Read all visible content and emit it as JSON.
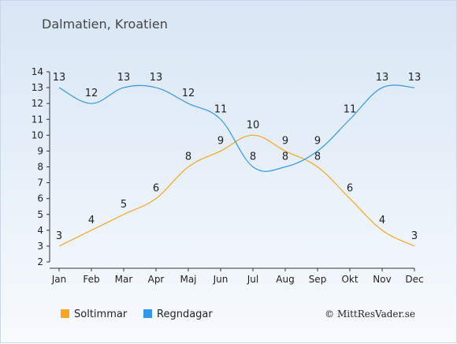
{
  "header": {
    "title": "Dalmatien, Kroatien"
  },
  "footer": {
    "copyright": "© MittResVader.se"
  },
  "chart_data": {
    "type": "line",
    "categories": [
      "Jan",
      "Feb",
      "Mar",
      "Apr",
      "Maj",
      "Jun",
      "Jul",
      "Aug",
      "Sep",
      "Okt",
      "Nov",
      "Dec"
    ],
    "ylim": [
      2,
      14
    ],
    "yticks": [
      2,
      3,
      4,
      5,
      6,
      7,
      8,
      9,
      10,
      11,
      12,
      13,
      14
    ],
    "grid": false,
    "legend_position": "bottom-left",
    "series": [
      {
        "name": "Soltimmar",
        "color": "#f5a623",
        "values": [
          3,
          4,
          5,
          6,
          8,
          9,
          10,
          9,
          8,
          6,
          4,
          3
        ]
      },
      {
        "name": "Regndagar",
        "color": "#3399e6",
        "values": [
          13,
          12,
          13,
          13,
          12,
          11,
          8,
          8,
          9,
          11,
          13,
          13
        ]
      }
    ]
  }
}
